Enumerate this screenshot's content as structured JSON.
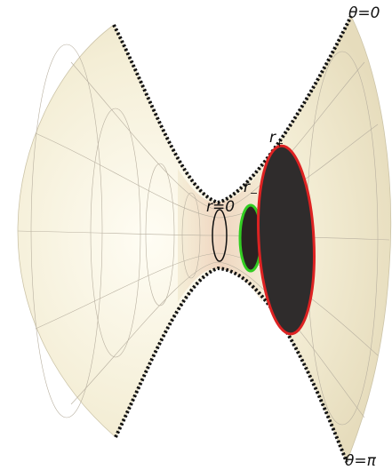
{
  "labels": {
    "theta_top": "θ=0",
    "theta_bottom": "θ=π",
    "r_plus": {
      "base": "r",
      "sub": "+"
    },
    "r_minus": {
      "base": "r",
      "sub": "−"
    },
    "r_zero": "r=0"
  }
}
